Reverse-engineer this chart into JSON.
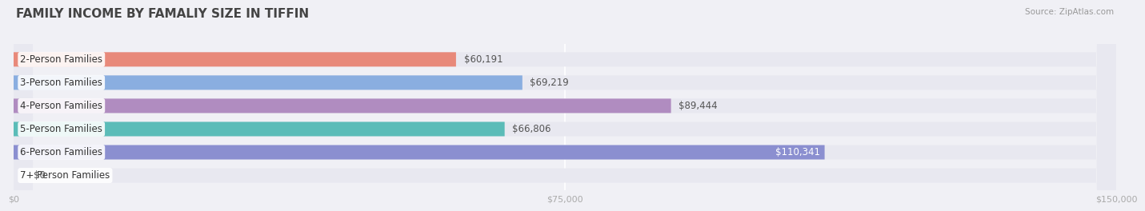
{
  "title": "FAMILY INCOME BY FAMALIY SIZE IN TIFFIN",
  "source": "Source: ZipAtlas.com",
  "categories": [
    "2-Person Families",
    "3-Person Families",
    "4-Person Families",
    "5-Person Families",
    "6-Person Families",
    "7+ Person Families"
  ],
  "values": [
    60191,
    69219,
    89444,
    66806,
    110341,
    0
  ],
  "bar_colors": [
    "#E8897A",
    "#8AAEE0",
    "#B08CC0",
    "#5BBCB8",
    "#8B8FD0",
    "#F0A0B0"
  ],
  "value_labels": [
    "$60,191",
    "$69,219",
    "$89,444",
    "$66,806",
    "$110,341",
    "$0"
  ],
  "value_label_colors": [
    "#555555",
    "#555555",
    "#555555",
    "#555555",
    "#ffffff",
    "#555555"
  ],
  "xlim": [
    0,
    150000
  ],
  "xtick_values": [
    0,
    75000,
    150000
  ],
  "xtick_labels": [
    "$0",
    "$75,000",
    "$150,000"
  ],
  "background_color": "#f0f0f5",
  "bar_bg_color": "#e8e8f0",
  "title_fontsize": 11,
  "label_fontsize": 8.5,
  "value_fontsize": 8.5,
  "bar_height": 0.62
}
